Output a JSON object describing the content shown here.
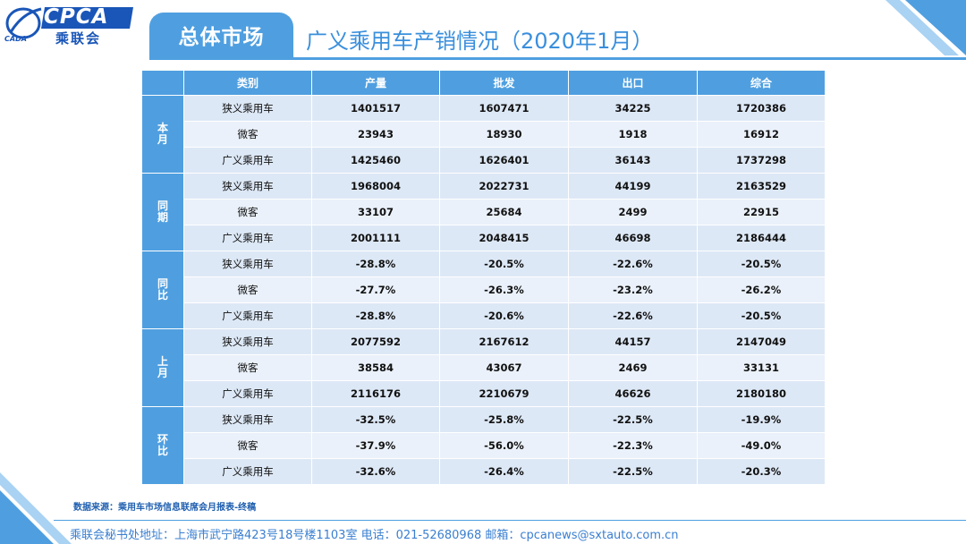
{
  "header": {
    "logo_en": "CPCA",
    "logo_cn": "乘联会",
    "logo_sub": "CADA",
    "section_label": "总体市场",
    "title": "广义乘用车产销情况（2020年1月）"
  },
  "table": {
    "columns": [
      "类别",
      "产量",
      "批发",
      "出口",
      "综合"
    ],
    "groups": [
      {
        "label": "本月",
        "label_chars": [
          "本",
          "月"
        ],
        "rows": [
          {
            "category": "狭义乘用车",
            "values": [
              "1401517",
              "1607471",
              "34225",
              "1720386"
            ]
          },
          {
            "category": "微客",
            "values": [
              "23943",
              "18930",
              "1918",
              "16912"
            ]
          },
          {
            "category": "广义乘用车",
            "values": [
              "1425460",
              "1626401",
              "36143",
              "1737298"
            ]
          }
        ]
      },
      {
        "label": "同期",
        "label_chars": [
          "同",
          "期"
        ],
        "rows": [
          {
            "category": "狭义乘用车",
            "values": [
              "1968004",
              "2022731",
              "44199",
              "2163529"
            ]
          },
          {
            "category": "微客",
            "values": [
              "33107",
              "25684",
              "2499",
              "22915"
            ]
          },
          {
            "category": "广义乘用车",
            "values": [
              "2001111",
              "2048415",
              "46698",
              "2186444"
            ]
          }
        ]
      },
      {
        "label": "同比",
        "label_chars": [
          "同",
          "比"
        ],
        "rows": [
          {
            "category": "狭义乘用车",
            "values": [
              "-28.8%",
              "-20.5%",
              "-22.6%",
              "-20.5%"
            ]
          },
          {
            "category": "微客",
            "values": [
              "-27.7%",
              "-26.3%",
              "-23.2%",
              "-26.2%"
            ]
          },
          {
            "category": "广义乘用车",
            "values": [
              "-28.8%",
              "-20.6%",
              "-22.6%",
              "-20.5%"
            ]
          }
        ]
      },
      {
        "label": "上月",
        "label_chars": [
          "上",
          "月"
        ],
        "rows": [
          {
            "category": "狭义乘用车",
            "values": [
              "2077592",
              "2167612",
              "44157",
              "2147049"
            ]
          },
          {
            "category": "微客",
            "values": [
              "38584",
              "43067",
              "2469",
              "33131"
            ]
          },
          {
            "category": "广义乘用车",
            "values": [
              "2116176",
              "2210679",
              "46626",
              "2180180"
            ]
          }
        ]
      },
      {
        "label": "环比",
        "label_chars": [
          "环",
          "比"
        ],
        "rows": [
          {
            "category": "狭义乘用车",
            "values": [
              "-32.5%",
              "-25.8%",
              "-22.5%",
              "-19.9%"
            ]
          },
          {
            "category": "微客",
            "values": [
              "-37.9%",
              "-56.0%",
              "-22.3%",
              "-49.0%"
            ]
          },
          {
            "category": "广义乘用车",
            "values": [
              "-32.6%",
              "-26.4%",
              "-22.5%",
              "-20.3%"
            ]
          }
        ]
      }
    ]
  },
  "source_note": "数据来源：乘用车市场信息联席会月报表-终稿",
  "footer": "乘联会秘书处地址：上海市武宁路423号18号楼1103室  电话：021-52680968  邮箱：cpcanews@sxtauto.com.cn",
  "colors": {
    "accent": "#4f9fe0",
    "row_light": "#dde8f6",
    "row_alt": "#eaf1fa",
    "brand": "#1a56b8"
  }
}
